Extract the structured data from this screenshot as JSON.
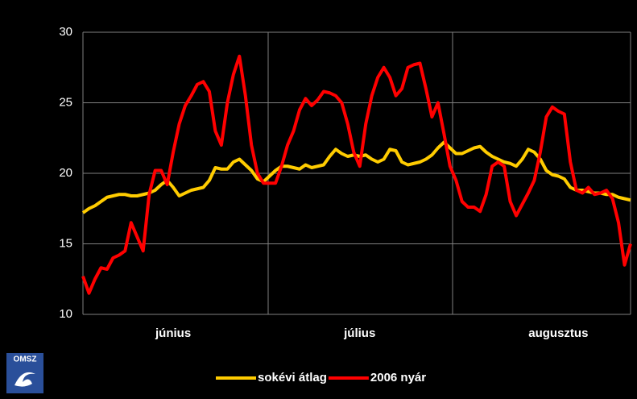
{
  "chart_data": {
    "type": "line",
    "categories": [
      null,
      null,
      null,
      null,
      null,
      null,
      null,
      null,
      null,
      null,
      null,
      null,
      null,
      null,
      null,
      "június",
      null,
      null,
      null,
      null,
      null,
      null,
      null,
      null,
      null,
      null,
      null,
      null,
      null,
      null,
      null,
      null,
      null,
      null,
      null,
      null,
      null,
      null,
      null,
      null,
      null,
      null,
      null,
      null,
      null,
      null,
      "július",
      null,
      null,
      null,
      null,
      null,
      null,
      null,
      null,
      null,
      null,
      null,
      null,
      null,
      null,
      null,
      null,
      null,
      null,
      null,
      null,
      null,
      null,
      null,
      null,
      null,
      null,
      null,
      null,
      null,
      null,
      null,
      null,
      "augusztus",
      null,
      null,
      null,
      null,
      null,
      null,
      null,
      null,
      null,
      null,
      null,
      null
    ],
    "series": [
      {
        "name": "sokévi átlag",
        "color": "#ffcc00",
        "values": [
          17.2,
          17.5,
          17.7,
          18.0,
          18.3,
          18.4,
          18.5,
          18.5,
          18.4,
          18.4,
          18.5,
          18.6,
          18.8,
          19.2,
          19.5,
          19.0,
          18.4,
          18.6,
          18.8,
          18.9,
          19.0,
          19.5,
          20.4,
          20.3,
          20.3,
          20.8,
          21.0,
          20.6,
          20.2,
          19.6,
          19.4,
          19.8,
          20.2,
          20.5,
          20.5,
          20.4,
          20.3,
          20.6,
          20.4,
          20.5,
          20.6,
          21.2,
          21.7,
          21.4,
          21.2,
          21.3,
          21.2,
          21.3,
          21.0,
          20.8,
          21.0,
          21.7,
          21.6,
          20.8,
          20.6,
          20.7,
          20.8,
          21.0,
          21.3,
          21.8,
          22.2,
          21.8,
          21.4,
          21.4,
          21.6,
          21.8,
          21.9,
          21.5,
          21.2,
          21.0,
          20.8,
          20.7,
          20.5,
          21.0,
          21.7,
          21.5,
          21.0,
          20.2,
          19.9,
          19.8,
          19.6,
          19.0,
          18.8,
          18.8,
          18.7,
          18.6,
          18.6,
          18.5,
          18.5,
          18.3,
          18.2,
          18.1
        ]
      },
      {
        "name": "2006 nyár",
        "color": "#ff0000",
        "values": [
          12.7,
          11.5,
          12.5,
          13.3,
          13.2,
          14.0,
          14.2,
          14.5,
          16.5,
          15.5,
          14.5,
          18.5,
          20.2,
          20.2,
          19.2,
          21.5,
          23.5,
          24.8,
          25.5,
          26.3,
          26.5,
          25.8,
          23,
          22,
          25,
          27,
          28.3,
          25.5,
          22,
          20,
          19.3,
          19.3,
          19.3,
          20.5,
          22,
          23,
          24.5,
          25.3,
          24.8,
          25.2,
          25.8,
          25.7,
          25.5,
          25,
          23.5,
          21.5,
          20.5,
          23.5,
          25.5,
          26.8,
          27.5,
          26.8,
          25.5,
          26,
          27.5,
          27.7,
          27.8,
          26,
          24,
          25,
          22.8,
          20.5,
          19.5,
          18,
          17.6,
          17.6,
          17.3,
          18.5,
          20.5,
          20.8,
          20.5,
          18,
          17,
          17.8,
          18.6,
          19.5,
          21.5,
          24,
          24.7,
          24.4,
          24.2,
          20.8,
          18.8,
          18.6,
          19,
          18.5,
          18.6,
          18.8,
          18.2,
          16.5,
          13.5,
          15
        ]
      }
    ],
    "ylim": [
      10,
      30
    ],
    "yticks": [
      10,
      15,
      20,
      25,
      30
    ],
    "grid": true,
    "legend": "bottom"
  },
  "logo": "OMSZ"
}
